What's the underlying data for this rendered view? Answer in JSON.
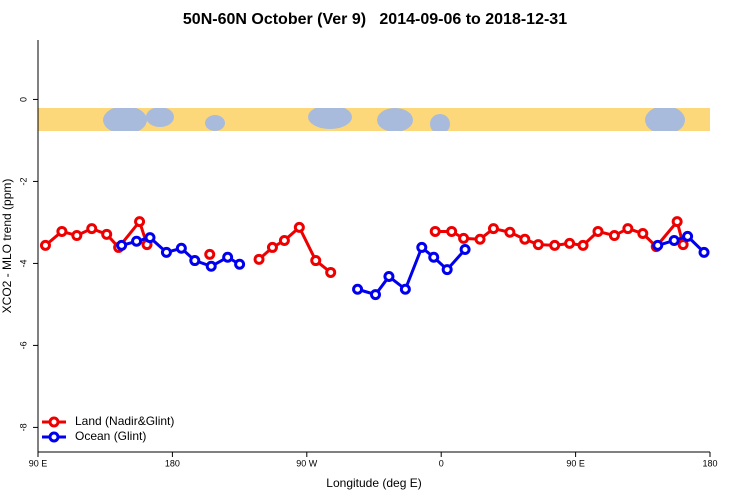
{
  "chart_data": {
    "type": "line",
    "title": "50N-60N October (Ver 9)   2014-09-06 to 2018-12-31",
    "x_label": "Longitude (deg E)",
    "y_label": "XCO2 - MLO trend (ppm)",
    "xlim": [
      90,
      540
    ],
    "ylim": [
      -8.6,
      1.45
    ],
    "xticks": [
      {
        "value": 90,
        "label": "90 E"
      },
      180,
      {
        "value": 270,
        "label": "90 W"
      },
      {
        "value": 360,
        "label": "0"
      },
      {
        "value": 450,
        "label": "90 E"
      },
      {
        "value": 540,
        "label": "180"
      }
    ],
    "yticks": [
      0,
      -2,
      -4,
      -6,
      -8
    ],
    "legend": "bottom-left",
    "series": [
      {
        "name": "Land (Nadir&Glint)",
        "color": "#ee0000",
        "x": [
          95,
          106,
          116,
          126,
          136,
          144,
          158,
          163,
          null,
          205,
          null,
          238,
          247,
          255,
          265,
          276,
          286,
          null,
          356,
          367,
          375,
          386,
          395,
          406,
          416,
          425,
          436,
          446,
          455,
          465,
          476,
          485,
          495,
          504,
          518,
          522
        ],
        "values": [
          -3.56,
          -3.22,
          -3.32,
          -3.15,
          -3.29,
          -3.61,
          -2.98,
          -3.54,
          null,
          -3.78,
          null,
          -3.9,
          -3.61,
          -3.44,
          -3.12,
          -3.93,
          -4.22,
          null,
          -3.22,
          -3.22,
          -3.39,
          -3.41,
          -3.15,
          -3.24,
          -3.41,
          -3.54,
          -3.56,
          -3.51,
          -3.56,
          -3.22,
          -3.32,
          -3.15,
          -3.27,
          -3.59,
          -2.98,
          -3.54
        ]
      },
      {
        "name": "Ocean (Glint)",
        "color": "#0000ee",
        "x": [
          146,
          156,
          165,
          176,
          186,
          195,
          206,
          217,
          225,
          null,
          304,
          316,
          325,
          336,
          347,
          355,
          364,
          376,
          null,
          505,
          516,
          525,
          536
        ],
        "values": [
          -3.56,
          -3.46,
          -3.37,
          -3.73,
          -3.63,
          -3.93,
          -4.07,
          -3.85,
          -4.02,
          null,
          -4.63,
          -4.76,
          -4.32,
          -4.63,
          -3.61,
          -3.85,
          -4.15,
          -3.66,
          null,
          -3.56,
          -3.44,
          -3.34,
          -3.73
        ]
      }
    ]
  }
}
